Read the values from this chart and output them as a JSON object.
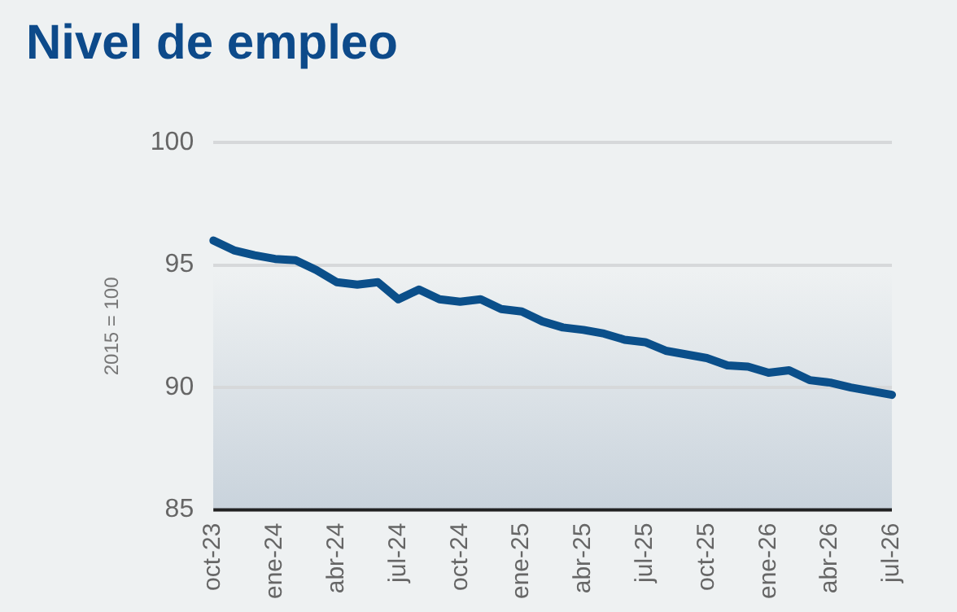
{
  "chart_data": {
    "type": "line",
    "title": "Nivel de empleo",
    "ylabel": "2015 = 100",
    "categories": [
      "oct-23",
      null,
      null,
      "ene-24",
      null,
      null,
      "abr-24",
      null,
      null,
      "jul-24",
      null,
      null,
      "oct-24",
      null,
      null,
      "ene-25",
      null,
      null,
      "abr-25",
      null,
      null,
      "jul-25",
      null,
      null,
      "oct-25",
      null,
      null,
      "ene-26",
      null,
      null,
      "abr-26",
      null,
      null,
      "jul-26"
    ],
    "series": [
      {
        "color": "#0b4f8a",
        "values": [
          96.0,
          95.6,
          95.4,
          95.25,
          95.2,
          94.8,
          94.3,
          94.2,
          94.3,
          93.6,
          94.0,
          93.6,
          93.5,
          93.6,
          93.2,
          93.1,
          92.7,
          92.45,
          92.35,
          92.2,
          91.95,
          91.85,
          91.5,
          91.35,
          91.2,
          90.9,
          90.85,
          90.6,
          90.7,
          90.3,
          90.2,
          90.0,
          89.85,
          89.7
        ]
      }
    ],
    "ylim": [
      85,
      100
    ],
    "yticks": [
      85,
      90,
      95,
      100
    ],
    "grid": "y",
    "marker": "none",
    "line_style": "solid"
  }
}
